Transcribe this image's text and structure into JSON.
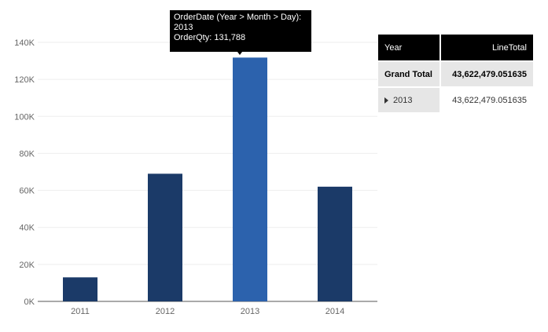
{
  "chart_data": {
    "type": "bar",
    "categories": [
      "2011",
      "2012",
      "2013",
      "2014"
    ],
    "values": [
      13000,
      69000,
      131788,
      62000
    ],
    "highlighted_category": "2013",
    "ylim": [
      0,
      140000
    ],
    "yticks": [
      0,
      20000,
      40000,
      60000,
      80000,
      100000,
      120000,
      140000
    ],
    "ytick_labels": [
      "0K",
      "20K",
      "40K",
      "60K",
      "80K",
      "100K",
      "120K",
      "140K"
    ],
    "grid": true,
    "colors": {
      "bar": "#1b3a68",
      "bar_highlight": "#2c62ad"
    }
  },
  "tooltip": {
    "line1": "OrderDate (Year > Month > Day):",
    "line2": "2013",
    "line3": "OrderQty: 131,788"
  },
  "matrix": {
    "headers": {
      "year": "Year",
      "total": "LineTotal"
    },
    "grand_total": {
      "label": "Grand Total",
      "value": "43,622,479.051635"
    },
    "rows": [
      {
        "year": "2013",
        "value": "43,622,479.051635",
        "icon": "expand-caret-icon"
      }
    ]
  }
}
